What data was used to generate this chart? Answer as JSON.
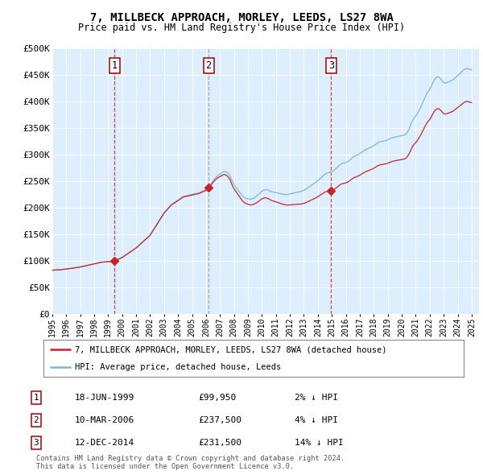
{
  "title": "7, MILLBECK APPROACH, MORLEY, LEEDS, LS27 8WA",
  "subtitle": "Price paid vs. HM Land Registry's House Price Index (HPI)",
  "x_start": 1995.0,
  "x_end": 2025.5,
  "y_min": 0,
  "y_max": 500000,
  "yticks": [
    0,
    50000,
    100000,
    150000,
    200000,
    250000,
    300000,
    350000,
    400000,
    450000,
    500000
  ],
  "ytick_labels": [
    "£0",
    "£50K",
    "£100K",
    "£150K",
    "£200K",
    "£250K",
    "£300K",
    "£350K",
    "£400K",
    "£450K",
    "£500K"
  ],
  "sale_dates": [
    1999.46,
    2006.19,
    2014.95
  ],
  "sale_prices": [
    99950,
    237500,
    231500
  ],
  "sale_labels": [
    "1",
    "2",
    "3"
  ],
  "hpi_color": "#7ab8d9",
  "property_color": "#cc2222",
  "sale2_dash_color": "#999999",
  "sale1_dash_color": "#cc2222",
  "sale3_dash_color": "#cc2222",
  "background_color": "#ddeeff",
  "legend_entries": [
    "7, MILLBECK APPROACH, MORLEY, LEEDS, LS27 8WA (detached house)",
    "HPI: Average price, detached house, Leeds"
  ],
  "table_data": [
    [
      "1",
      "18-JUN-1999",
      "£99,950",
      "2% ↓ HPI"
    ],
    [
      "2",
      "10-MAR-2006",
      "£237,500",
      "4% ↓ HPI"
    ],
    [
      "3",
      "12-DEC-2014",
      "£231,500",
      "14% ↓ HPI"
    ]
  ],
  "footnote": "Contains HM Land Registry data © Crown copyright and database right 2024.\nThis data is licensed under the Open Government Licence v3.0.",
  "xticks": [
    1995,
    1996,
    1997,
    1998,
    1999,
    2000,
    2001,
    2002,
    2003,
    2004,
    2005,
    2006,
    2007,
    2008,
    2009,
    2010,
    2011,
    2012,
    2013,
    2014,
    2015,
    2016,
    2017,
    2018,
    2019,
    2020,
    2021,
    2022,
    2023,
    2024,
    2025
  ],
  "hpi_monthly_data": [
    [
      1995.0,
      82000
    ],
    [
      1995.083,
      82500
    ],
    [
      1995.167,
      83000
    ],
    [
      1995.25,
      82800
    ],
    [
      1995.333,
      83200
    ],
    [
      1995.417,
      83500
    ],
    [
      1995.5,
      83100
    ],
    [
      1995.583,
      83400
    ],
    [
      1995.667,
      83800
    ],
    [
      1995.75,
      84000
    ],
    [
      1995.833,
      84200
    ],
    [
      1995.917,
      84500
    ],
    [
      1996.0,
      84800
    ],
    [
      1996.083,
      85000
    ],
    [
      1996.167,
      85300
    ],
    [
      1996.25,
      85600
    ],
    [
      1996.333,
      85900
    ],
    [
      1996.417,
      86200
    ],
    [
      1996.5,
      86500
    ],
    [
      1996.583,
      86800
    ],
    [
      1996.667,
      87200
    ],
    [
      1996.75,
      87600
    ],
    [
      1996.833,
      87900
    ],
    [
      1996.917,
      88200
    ],
    [
      1997.0,
      88600
    ],
    [
      1997.083,
      89000
    ],
    [
      1997.167,
      89500
    ],
    [
      1997.25,
      90000
    ],
    [
      1997.333,
      90500
    ],
    [
      1997.417,
      91000
    ],
    [
      1997.5,
      91500
    ],
    [
      1997.583,
      92000
    ],
    [
      1997.667,
      92500
    ],
    [
      1997.75,
      93000
    ],
    [
      1997.833,
      93500
    ],
    [
      1997.917,
      94000
    ],
    [
      1998.0,
      94500
    ],
    [
      1998.083,
      95000
    ],
    [
      1998.167,
      95500
    ],
    [
      1998.25,
      96000
    ],
    [
      1998.333,
      96500
    ],
    [
      1998.417,
      97000
    ],
    [
      1998.5,
      97500
    ],
    [
      1998.583,
      97800
    ],
    [
      1998.667,
      98000
    ],
    [
      1998.75,
      98200
    ],
    [
      1998.833,
      98400
    ],
    [
      1998.917,
      98500
    ],
    [
      1999.0,
      98600
    ],
    [
      1999.083,
      98800
    ],
    [
      1999.167,
      99000
    ],
    [
      1999.25,
      99200
    ],
    [
      1999.333,
      99500
    ],
    [
      1999.417,
      99800
    ],
    [
      1999.5,
      100500
    ],
    [
      1999.583,
      101500
    ],
    [
      1999.667,
      102500
    ],
    [
      1999.75,
      103500
    ],
    [
      1999.833,
      104500
    ],
    [
      1999.917,
      105500
    ],
    [
      2000.0,
      106500
    ],
    [
      2000.083,
      108000
    ],
    [
      2000.167,
      109500
    ],
    [
      2000.25,
      111000
    ],
    [
      2000.333,
      112500
    ],
    [
      2000.417,
      114000
    ],
    [
      2000.5,
      115500
    ],
    [
      2000.583,
      117000
    ],
    [
      2000.667,
      118500
    ],
    [
      2000.75,
      120000
    ],
    [
      2000.833,
      121500
    ],
    [
      2000.917,
      123000
    ],
    [
      2001.0,
      124500
    ],
    [
      2001.083,
      126500
    ],
    [
      2001.167,
      128500
    ],
    [
      2001.25,
      130500
    ],
    [
      2001.333,
      132500
    ],
    [
      2001.417,
      134500
    ],
    [
      2001.5,
      136500
    ],
    [
      2001.583,
      138500
    ],
    [
      2001.667,
      140500
    ],
    [
      2001.75,
      142500
    ],
    [
      2001.833,
      144500
    ],
    [
      2001.917,
      146500
    ],
    [
      2002.0,
      148500
    ],
    [
      2002.083,
      152000
    ],
    [
      2002.167,
      155500
    ],
    [
      2002.25,
      159000
    ],
    [
      2002.333,
      162500
    ],
    [
      2002.417,
      166000
    ],
    [
      2002.5,
      169500
    ],
    [
      2002.583,
      173000
    ],
    [
      2002.667,
      176500
    ],
    [
      2002.75,
      180000
    ],
    [
      2002.833,
      183500
    ],
    [
      2002.917,
      187000
    ],
    [
      2003.0,
      190500
    ],
    [
      2003.083,
      193000
    ],
    [
      2003.167,
      195500
    ],
    [
      2003.25,
      198000
    ],
    [
      2003.333,
      200500
    ],
    [
      2003.417,
      203000
    ],
    [
      2003.5,
      205500
    ],
    [
      2003.583,
      207000
    ],
    [
      2003.667,
      208500
    ],
    [
      2003.75,
      210000
    ],
    [
      2003.833,
      211500
    ],
    [
      2003.917,
      213000
    ],
    [
      2004.0,
      214500
    ],
    [
      2004.083,
      216000
    ],
    [
      2004.167,
      217500
    ],
    [
      2004.25,
      219000
    ],
    [
      2004.333,
      220500
    ],
    [
      2004.417,
      221500
    ],
    [
      2004.5,
      222000
    ],
    [
      2004.583,
      222500
    ],
    [
      2004.667,
      223000
    ],
    [
      2004.75,
      223500
    ],
    [
      2004.833,
      224000
    ],
    [
      2004.917,
      224500
    ],
    [
      2005.0,
      225000
    ],
    [
      2005.083,
      225500
    ],
    [
      2005.167,
      226000
    ],
    [
      2005.25,
      226500
    ],
    [
      2005.333,
      227000
    ],
    [
      2005.417,
      227500
    ],
    [
      2005.5,
      228000
    ],
    [
      2005.583,
      229000
    ],
    [
      2005.667,
      230000
    ],
    [
      2005.75,
      231000
    ],
    [
      2005.833,
      232000
    ],
    [
      2005.917,
      233000
    ],
    [
      2006.0,
      234000
    ],
    [
      2006.083,
      236000
    ],
    [
      2006.167,
      238000
    ],
    [
      2006.25,
      241000
    ],
    [
      2006.333,
      244000
    ],
    [
      2006.417,
      247000
    ],
    [
      2006.5,
      250000
    ],
    [
      2006.583,
      253000
    ],
    [
      2006.667,
      256000
    ],
    [
      2006.75,
      258000
    ],
    [
      2006.833,
      260000
    ],
    [
      2006.917,
      262000
    ],
    [
      2007.0,
      263000
    ],
    [
      2007.083,
      265000
    ],
    [
      2007.167,
      266500
    ],
    [
      2007.25,
      268000
    ],
    [
      2007.333,
      268500
    ],
    [
      2007.417,
      268000
    ],
    [
      2007.5,
      267000
    ],
    [
      2007.583,
      265000
    ],
    [
      2007.667,
      262000
    ],
    [
      2007.75,
      258000
    ],
    [
      2007.833,
      253000
    ],
    [
      2007.917,
      248000
    ],
    [
      2008.0,
      244000
    ],
    [
      2008.083,
      241000
    ],
    [
      2008.167,
      238000
    ],
    [
      2008.25,
      235000
    ],
    [
      2008.333,
      232000
    ],
    [
      2008.417,
      229000
    ],
    [
      2008.5,
      226000
    ],
    [
      2008.583,
      223000
    ],
    [
      2008.667,
      221000
    ],
    [
      2008.75,
      219000
    ],
    [
      2008.833,
      218000
    ],
    [
      2008.917,
      217500
    ],
    [
      2009.0,
      217000
    ],
    [
      2009.083,
      216500
    ],
    [
      2009.167,
      216000
    ],
    [
      2009.25,
      216500
    ],
    [
      2009.333,
      217000
    ],
    [
      2009.417,
      218000
    ],
    [
      2009.5,
      219500
    ],
    [
      2009.583,
      221000
    ],
    [
      2009.667,
      223000
    ],
    [
      2009.75,
      225000
    ],
    [
      2009.833,
      227000
    ],
    [
      2009.917,
      229000
    ],
    [
      2010.0,
      231000
    ],
    [
      2010.083,
      232500
    ],
    [
      2010.167,
      233500
    ],
    [
      2010.25,
      234000
    ],
    [
      2010.333,
      234000
    ],
    [
      2010.417,
      233500
    ],
    [
      2010.5,
      232500
    ],
    [
      2010.583,
      231500
    ],
    [
      2010.667,
      230500
    ],
    [
      2010.75,
      230000
    ],
    [
      2010.833,
      229500
    ],
    [
      2010.917,
      229000
    ],
    [
      2011.0,
      228500
    ],
    [
      2011.083,
      228000
    ],
    [
      2011.167,
      227500
    ],
    [
      2011.25,
      227000
    ],
    [
      2011.333,
      226500
    ],
    [
      2011.417,
      226000
    ],
    [
      2011.5,
      225500
    ],
    [
      2011.583,
      225000
    ],
    [
      2011.667,
      225000
    ],
    [
      2011.75,
      225000
    ],
    [
      2011.833,
      225000
    ],
    [
      2011.917,
      225500
    ],
    [
      2012.0,
      226000
    ],
    [
      2012.083,
      226500
    ],
    [
      2012.167,
      227000
    ],
    [
      2012.25,
      227500
    ],
    [
      2012.333,
      228000
    ],
    [
      2012.417,
      228500
    ],
    [
      2012.5,
      229000
    ],
    [
      2012.583,
      229500
    ],
    [
      2012.667,
      230000
    ],
    [
      2012.75,
      230500
    ],
    [
      2012.833,
      231000
    ],
    [
      2012.917,
      232000
    ],
    [
      2013.0,
      233000
    ],
    [
      2013.083,
      234000
    ],
    [
      2013.167,
      235500
    ],
    [
      2013.25,
      237000
    ],
    [
      2013.333,
      238500
    ],
    [
      2013.417,
      240000
    ],
    [
      2013.5,
      241500
    ],
    [
      2013.583,
      243000
    ],
    [
      2013.667,
      244500
    ],
    [
      2013.75,
      246000
    ],
    [
      2013.833,
      247500
    ],
    [
      2013.917,
      249000
    ],
    [
      2014.0,
      251000
    ],
    [
      2014.083,
      253000
    ],
    [
      2014.167,
      255000
    ],
    [
      2014.25,
      257000
    ],
    [
      2014.333,
      259000
    ],
    [
      2014.417,
      261000
    ],
    [
      2014.5,
      263000
    ],
    [
      2014.583,
      264500
    ],
    [
      2014.667,
      265500
    ],
    [
      2014.75,
      266000
    ],
    [
      2014.833,
      266500
    ],
    [
      2014.917,
      267000
    ],
    [
      2015.0,
      268000
    ],
    [
      2015.083,
      269500
    ],
    [
      2015.167,
      271000
    ],
    [
      2015.25,
      273000
    ],
    [
      2015.333,
      275000
    ],
    [
      2015.417,
      277000
    ],
    [
      2015.5,
      279000
    ],
    [
      2015.583,
      281000
    ],
    [
      2015.667,
      282500
    ],
    [
      2015.75,
      283500
    ],
    [
      2015.833,
      284000
    ],
    [
      2015.917,
      284500
    ],
    [
      2016.0,
      285000
    ],
    [
      2016.083,
      286000
    ],
    [
      2016.167,
      287500
    ],
    [
      2016.25,
      289000
    ],
    [
      2016.333,
      291000
    ],
    [
      2016.417,
      293000
    ],
    [
      2016.5,
      295000
    ],
    [
      2016.583,
      296500
    ],
    [
      2016.667,
      297500
    ],
    [
      2016.75,
      298500
    ],
    [
      2016.833,
      299500
    ],
    [
      2016.917,
      300500
    ],
    [
      2017.0,
      302000
    ],
    [
      2017.083,
      303500
    ],
    [
      2017.167,
      305000
    ],
    [
      2017.25,
      306500
    ],
    [
      2017.333,
      308000
    ],
    [
      2017.417,
      309500
    ],
    [
      2017.5,
      310500
    ],
    [
      2017.583,
      311500
    ],
    [
      2017.667,
      312500
    ],
    [
      2017.75,
      313500
    ],
    [
      2017.833,
      314500
    ],
    [
      2017.917,
      315500
    ],
    [
      2018.0,
      317000
    ],
    [
      2018.083,
      318500
    ],
    [
      2018.167,
      320000
    ],
    [
      2018.25,
      321500
    ],
    [
      2018.333,
      323000
    ],
    [
      2018.417,
      324000
    ],
    [
      2018.5,
      324500
    ],
    [
      2018.583,
      325000
    ],
    [
      2018.667,
      325500
    ],
    [
      2018.75,
      326000
    ],
    [
      2018.833,
      326500
    ],
    [
      2018.917,
      327000
    ],
    [
      2019.0,
      328000
    ],
    [
      2019.083,
      329000
    ],
    [
      2019.167,
      330000
    ],
    [
      2019.25,
      331000
    ],
    [
      2019.333,
      332000
    ],
    [
      2019.417,
      332500
    ],
    [
      2019.5,
      333000
    ],
    [
      2019.583,
      333500
    ],
    [
      2019.667,
      334000
    ],
    [
      2019.75,
      334500
    ],
    [
      2019.833,
      335000
    ],
    [
      2019.917,
      335500
    ],
    [
      2020.0,
      336000
    ],
    [
      2020.083,
      336500
    ],
    [
      2020.167,
      337000
    ],
    [
      2020.25,
      337500
    ],
    [
      2020.333,
      340000
    ],
    [
      2020.417,
      343000
    ],
    [
      2020.5,
      347000
    ],
    [
      2020.583,
      352000
    ],
    [
      2020.667,
      358000
    ],
    [
      2020.75,
      363000
    ],
    [
      2020.833,
      367000
    ],
    [
      2020.917,
      370000
    ],
    [
      2021.0,
      373000
    ],
    [
      2021.083,
      376000
    ],
    [
      2021.167,
      380000
    ],
    [
      2021.25,
      384000
    ],
    [
      2021.333,
      388000
    ],
    [
      2021.417,
      393000
    ],
    [
      2021.5,
      398000
    ],
    [
      2021.583,
      403000
    ],
    [
      2021.667,
      408000
    ],
    [
      2021.75,
      413000
    ],
    [
      2021.833,
      417000
    ],
    [
      2021.917,
      420000
    ],
    [
      2022.0,
      423000
    ],
    [
      2022.083,
      427000
    ],
    [
      2022.167,
      432000
    ],
    [
      2022.25,
      437000
    ],
    [
      2022.333,
      441000
    ],
    [
      2022.417,
      444000
    ],
    [
      2022.5,
      446000
    ],
    [
      2022.583,
      447000
    ],
    [
      2022.667,
      446000
    ],
    [
      2022.75,
      444000
    ],
    [
      2022.833,
      441000
    ],
    [
      2022.917,
      438000
    ],
    [
      2023.0,
      436000
    ],
    [
      2023.083,
      435000
    ],
    [
      2023.167,
      435000
    ],
    [
      2023.25,
      436000
    ],
    [
      2023.333,
      437000
    ],
    [
      2023.417,
      438000
    ],
    [
      2023.5,
      439000
    ],
    [
      2023.583,
      440000
    ],
    [
      2023.667,
      441000
    ],
    [
      2023.75,
      443000
    ],
    [
      2023.833,
      445000
    ],
    [
      2023.917,
      447000
    ],
    [
      2024.0,
      449000
    ],
    [
      2024.083,
      451000
    ],
    [
      2024.167,
      453000
    ],
    [
      2024.25,
      455000
    ],
    [
      2024.333,
      457000
    ],
    [
      2024.417,
      459000
    ],
    [
      2024.5,
      461000
    ],
    [
      2024.583,
      462000
    ],
    [
      2024.667,
      462500
    ],
    [
      2024.75,
      462000
    ],
    [
      2024.833,
      461000
    ],
    [
      2024.917,
      460000
    ],
    [
      2025.0,
      460000
    ]
  ]
}
